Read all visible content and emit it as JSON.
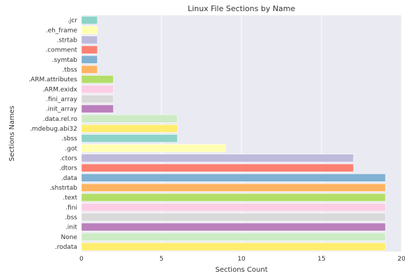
{
  "chart_data": {
    "type": "bar",
    "orientation": "horizontal",
    "title": "Linux File Sections by Name",
    "xlabel": "Sections Count",
    "ylabel": "Sections Names",
    "xlim": [
      0,
      20
    ],
    "xticks": [
      0,
      5,
      10,
      15,
      20
    ],
    "grid": true,
    "categories": [
      ".jcr",
      ".eh_frame",
      ".strtab",
      ".comment",
      ".symtab",
      ".tbss",
      ".ARM.attributes",
      ".ARM.exidx",
      ".fini_array",
      ".init_array",
      ".data.rel.ro",
      ".mdebug.abi32",
      ".sbss",
      ".got",
      ".ctors",
      ".dtors",
      ".data",
      ".shstrtab",
      ".text",
      ".fini",
      ".bss",
      ".init",
      "None",
      ".rodata"
    ],
    "values": [
      1,
      1,
      1,
      1,
      1,
      1,
      2,
      2,
      2,
      2,
      6,
      6,
      6,
      9,
      17,
      17,
      19,
      19,
      19,
      19,
      19,
      19,
      19,
      19
    ],
    "colors": [
      "#8dd3c7",
      "#ffffb3",
      "#bebada",
      "#fb8072",
      "#80b1d3",
      "#fdb462",
      "#b3de69",
      "#fccde5",
      "#d9d9d9",
      "#bc80bd",
      "#ccebc5",
      "#ffed6f",
      "#8dd3c7",
      "#ffffb3",
      "#bebada",
      "#fb8072",
      "#80b1d3",
      "#fdb462",
      "#b3de69",
      "#fccde5",
      "#d9d9d9",
      "#bc80bd",
      "#ccebc5",
      "#ffed6f"
    ],
    "plot_background": "#eaeaf2",
    "grid_color": "#ffffff"
  }
}
